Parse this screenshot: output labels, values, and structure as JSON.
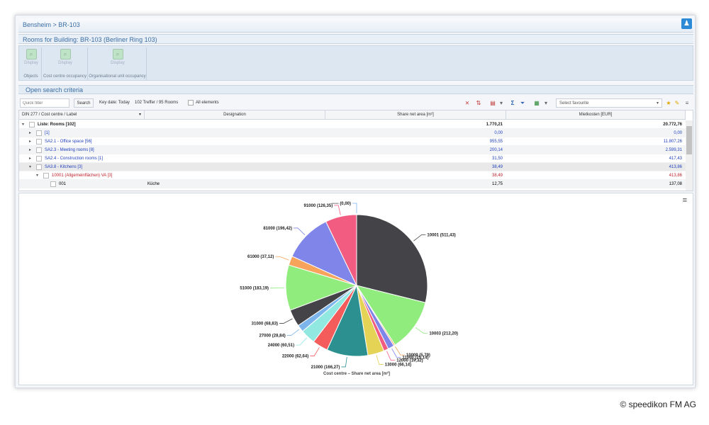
{
  "breadcrumb": "Bensheim > BR-103",
  "title": "Rooms for Building: BR-103 (Berliner Ring 103)",
  "ribbon": {
    "groups": [
      {
        "label": "Objects",
        "button": "Display"
      },
      {
        "label": "Cost centre occupancy",
        "button": "Display"
      },
      {
        "label": "Organisational unit occupancy",
        "button": "Display"
      }
    ]
  },
  "search_criteria": "Open search criteria",
  "toolbar": {
    "quick_filter_placeholder": "Quick filter",
    "search_label": "Search",
    "key_date": "Key date: Today",
    "hits": "102 Treffer / 95 Rooms",
    "all_elements": "All elements",
    "favourite_placeholder": "Select favourite"
  },
  "grid": {
    "columns": [
      "DIN 277 / Cost centre / Label",
      "Designation",
      "Share net area [m²]",
      "Mietkosten [EUR]"
    ],
    "rows": [
      {
        "label": "Liste: Rooms [102]",
        "designation": "",
        "area": "1.770,21",
        "cost": "20.772,76",
        "style": "bold",
        "toggle": "▾",
        "indent": 0
      },
      {
        "label": "[1]",
        "designation": "",
        "area": "0,00",
        "cost": "0,00",
        "style": "blue",
        "toggle": "▸",
        "indent": 1
      },
      {
        "label": "SA2.1 - Office space [56]",
        "designation": "",
        "area": "955,55",
        "cost": "11.807,26",
        "style": "blue",
        "toggle": "▸",
        "indent": 1
      },
      {
        "label": "SA2.3 - Meeting rooms [8]",
        "designation": "",
        "area": "200,14",
        "cost": "2.599,31",
        "style": "blue",
        "toggle": "▸",
        "indent": 1
      },
      {
        "label": "SA2.4 - Construction rooms [1]",
        "designation": "",
        "area": "31,50",
        "cost": "417,43",
        "style": "blue",
        "toggle": "▸",
        "indent": 1
      },
      {
        "label": "SA3.8 - Kitchens [3]",
        "designation": "",
        "area": "38,49",
        "cost": "413,86",
        "style": "blue",
        "toggle": "▾",
        "indent": 1
      },
      {
        "label": "10001 (Allgemeinflächen) VA [3]",
        "designation": "",
        "area": "38,49",
        "cost": "413,86",
        "style": "red",
        "toggle": "▾",
        "indent": 2
      },
      {
        "label": "001",
        "designation": "Küche",
        "area": "12,75",
        "cost": "137,08",
        "style": "plain",
        "toggle": "",
        "indent": 3
      }
    ]
  },
  "chart_data": {
    "type": "pie",
    "title": "Cost centre – Share net area [m²]",
    "slices": [
      {
        "label": "10001",
        "value": 511.43,
        "text": "10001 (511,43)",
        "color": "#434348"
      },
      {
        "label": "10003",
        "value": 212.2,
        "text": "10003 (212,20)",
        "color": "#90ed7d"
      },
      {
        "label": "10009",
        "value": 5.79,
        "text": "10009 (5,79)",
        "color": "#f7a35c"
      },
      {
        "label": "11000",
        "value": 25.14,
        "text": "11000 (25,14)",
        "color": "#8085e9"
      },
      {
        "label": "12000",
        "value": 19.32,
        "text": "12000 (19,32)",
        "color": "#f15c80"
      },
      {
        "label": "13000",
        "value": 66.14,
        "text": "13000 (66,14)",
        "color": "#e4d354"
      },
      {
        "label": "21000",
        "value": 166.27,
        "text": "21000 (166,27)",
        "color": "#2b908f"
      },
      {
        "label": "22000",
        "value": 62.64,
        "text": "22000 (62,64)",
        "color": "#f45b5b"
      },
      {
        "label": "24000",
        "value": 60.51,
        "text": "24000 (60,51)",
        "color": "#91e8e1"
      },
      {
        "label": "27000",
        "value": 28.84,
        "text": "27000 (28,84)",
        "color": "#7cb5ec"
      },
      {
        "label": "31000",
        "value": 68.83,
        "text": "31000 (68,83)",
        "color": "#434348"
      },
      {
        "label": "51000",
        "value": 183.19,
        "text": "51000 (183,19)",
        "color": "#90ed7d"
      },
      {
        "label": "61000",
        "value": 37.12,
        "text": "61000 (37,12)",
        "color": "#f7a35c"
      },
      {
        "label": "81000",
        "value": 196.42,
        "text": "81000 (196,42)",
        "color": "#8085e9"
      },
      {
        "label": "91000",
        "value": 126.35,
        "text": "91000 (126,35)",
        "color": "#f15c80"
      },
      {
        "label": "—",
        "value": 0.0,
        "text": "----- (0,00)",
        "color": "#7cb5ec"
      }
    ]
  },
  "copyright": "© speedikon FM AG"
}
